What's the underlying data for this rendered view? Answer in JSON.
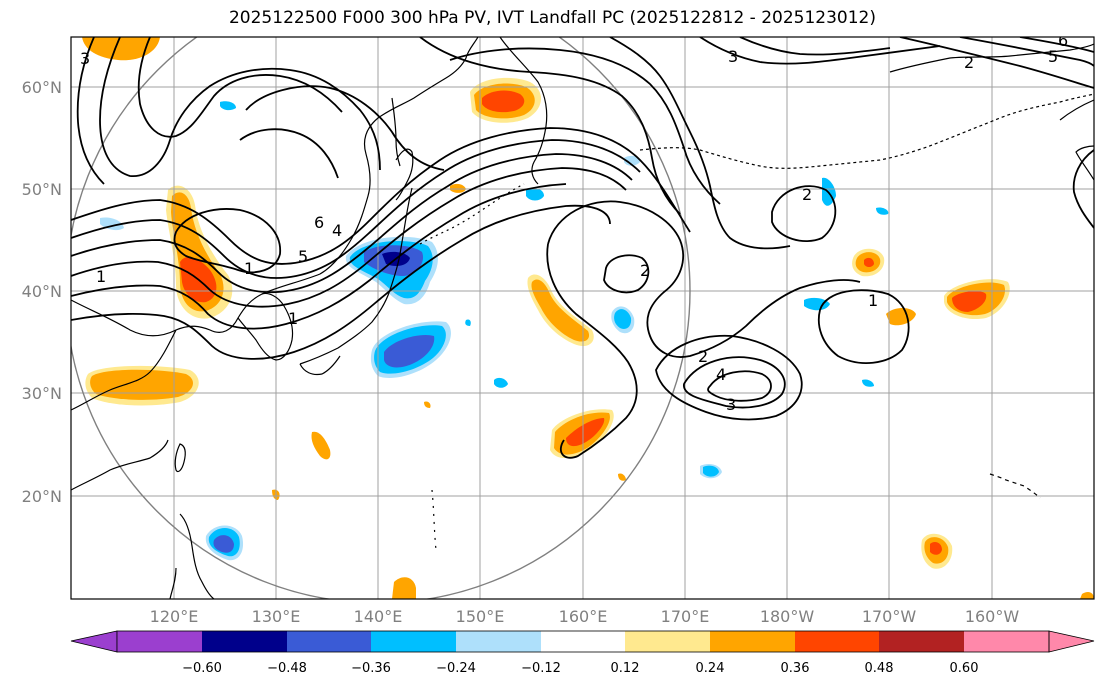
{
  "title": "2025122500 F000 300 hPa PV, IVT Landfall PC (2025122812 - 2025123012)",
  "axes": {
    "lon_ticks": [
      "120°E",
      "130°E",
      "140°E",
      "150°E",
      "160°E",
      "170°E",
      "180°W",
      "170°W",
      "160°W"
    ],
    "lat_ticks": [
      "60°N",
      "50°N",
      "40°N",
      "30°N",
      "20°N"
    ],
    "lon_range": [
      110,
      210
    ],
    "lat_range": [
      10,
      65
    ]
  },
  "colorbar": {
    "colors": [
      "#9b3fcf",
      "#00008b",
      "#3a5bd6",
      "#00bfff",
      "#aee0fb",
      "#ffffff",
      "#ffe98f",
      "#ffa500",
      "#ff4500",
      "#b22222",
      "#ff88aa"
    ],
    "tick_labels": [
      "−0.60",
      "−0.48",
      "−0.36",
      "−0.24",
      "−0.12",
      "0.12",
      "0.24",
      "0.36",
      "0.48",
      "0.60"
    ]
  },
  "contour_labels": [
    "3",
    "6",
    "5",
    "2",
    "3",
    "1",
    "5",
    "6",
    "4",
    "1",
    "2",
    "2",
    "1",
    "2",
    "3",
    "4",
    "1"
  ],
  "colors": {
    "contour": "#000000",
    "gridline": "#a0a0a0",
    "circle": "#808080",
    "coast": "#000000"
  }
}
